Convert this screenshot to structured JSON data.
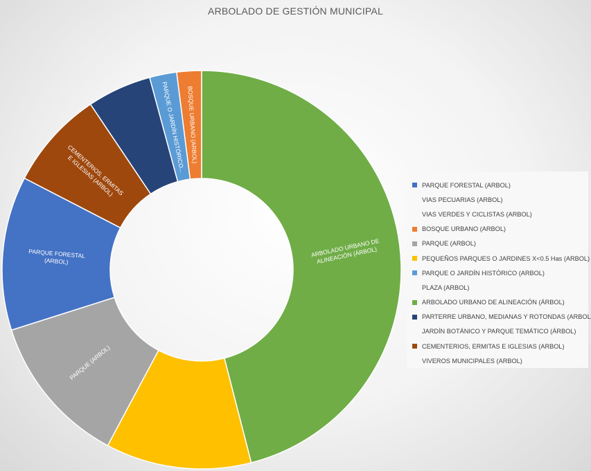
{
  "chart_data": {
    "type": "donut",
    "title": "ARBOLADO DE GESTIÓN MUNICIPAL",
    "legend_position": "right",
    "series": [
      {
        "name": "PARQUE FORESTAL (ARBOL)",
        "value": 12.5,
        "color": "#4472c4",
        "label": "PARQUE FORESTAL (ARBOL)"
      },
      {
        "name": "VIAS PECUARIAS (ARBOL)",
        "value": 0,
        "color": "",
        "label": ""
      },
      {
        "name": "VIAS VERDES Y CICLISTAS (ARBOL)",
        "value": 0,
        "color": "",
        "label": ""
      },
      {
        "name": "BOSQUE URBANO (ARBOL)",
        "value": 2.0,
        "color": "#ed7d31",
        "label": "BOSQUE URBANO (ARBOL)"
      },
      {
        "name": "PARQUE (ARBOL)",
        "value": 12.3,
        "color": "#a5a5a5",
        "label": "PARQUE (ARBOL)"
      },
      {
        "name": "PEQUEÑOS PARQUES O JARDINES X<0.5 Has (ARBOL)",
        "value": 11.8,
        "color": "#ffc000",
        "label": ""
      },
      {
        "name": "PARQUE O JARDÍN HISTÓRICO (ARBOL)",
        "value": 2.2,
        "color": "#5b9bd5",
        "label": "PARQUE O JARDÍN HISTÓRICO..."
      },
      {
        "name": "PLAZA (ARBOL)",
        "value": 0,
        "color": "",
        "label": ""
      },
      {
        "name": "ARBOLADO URBANO DE ALINEACIÓN (ÁRBOL)",
        "value": 46.0,
        "color": "#70ad47",
        "label": "ARBOLADO URBANO DE ALINEACIÓN (ÁRBOL)"
      },
      {
        "name": "PARTERRE URBANO, MEDIANAS Y ROTONDAS (ARBOL)",
        "value": 5.2,
        "color": "#264478",
        "label": ""
      },
      {
        "name": "JARDÍN BOTÁNICO Y PARQUE TEMÁTICO (ÁRBOL)",
        "value": 0,
        "color": "",
        "label": ""
      },
      {
        "name": "CEMENTERIOS, ERMITAS E IGLESIAS (ARBOL)",
        "value": 8.0,
        "color": "#9e480e",
        "label": "CEMENTERIOS, ERMITAS E IGLESIAS (ARBOL)"
      },
      {
        "name": "VIVEROS MUNICIPALES (ARBOL)",
        "value": 0,
        "color": "",
        "label": ""
      }
    ],
    "draw_order": [
      "ARBOLADO URBANO DE ALINEACIÓN (ÁRBOL)",
      "PEQUEÑOS PARQUES O JARDINES X<0.5 Has (ARBOL)",
      "PARQUE (ARBOL)",
      "PARQUE FORESTAL (ARBOL)",
      "CEMENTERIOS, ERMITAS E IGLESIAS (ARBOL)",
      "PARTERRE URBANO, MEDIANAS Y ROTONDAS (ARBOL)",
      "PARQUE O JARDÍN HISTÓRICO (ARBOL)",
      "BOSQUE URBANO (ARBOL)"
    ]
  }
}
